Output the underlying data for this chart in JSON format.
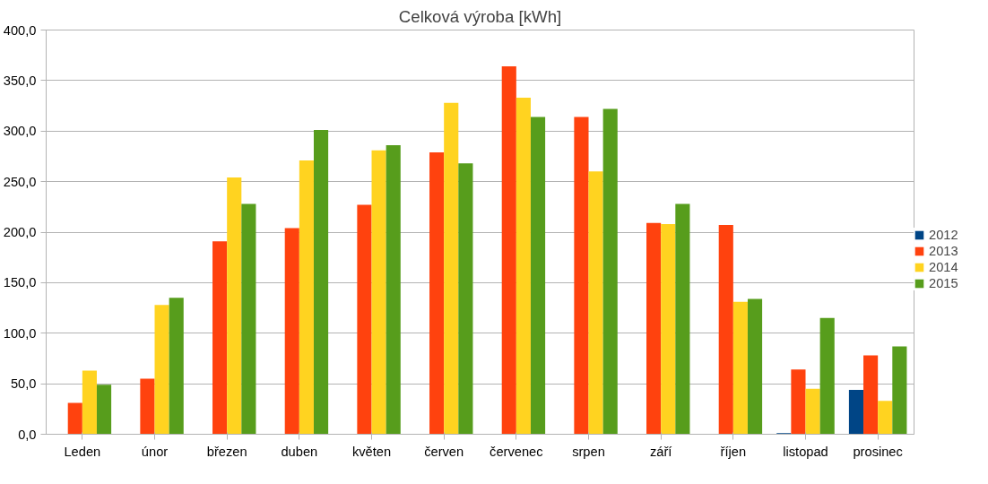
{
  "chart_data": {
    "type": "bar",
    "title": "Celková výroba [kWh]",
    "categories": [
      "Leden",
      "únor",
      "březen",
      "duben",
      "květen",
      "červen",
      "červenec",
      "srpen",
      "září",
      "říjen",
      "listopad",
      "prosinec"
    ],
    "series": [
      {
        "name": "2012",
        "color": "#004586",
        "values": [
          null,
          null,
          null,
          null,
          null,
          null,
          null,
          null,
          null,
          null,
          1,
          44
        ]
      },
      {
        "name": "2013",
        "color": "#ff420e",
        "values": [
          31,
          55,
          191,
          204,
          227,
          279,
          364,
          314,
          209,
          207,
          64,
          78
        ]
      },
      {
        "name": "2014",
        "color": "#ffd320",
        "values": [
          63,
          128,
          254,
          271,
          281,
          328,
          333,
          260,
          208,
          131,
          45,
          33
        ]
      },
      {
        "name": "2015",
        "color": "#579d1c",
        "values": [
          49,
          135,
          228,
          301,
          286,
          268,
          314,
          322,
          228,
          134,
          115,
          87
        ]
      }
    ],
    "ylim": [
      0,
      400
    ],
    "yticks": [
      {
        "value": 0,
        "label": "0,0"
      },
      {
        "value": 50,
        "label": "50,0"
      },
      {
        "value": 100,
        "label": "100,0"
      },
      {
        "value": 150,
        "label": "150,0"
      },
      {
        "value": 200,
        "label": "200,0"
      },
      {
        "value": 250,
        "label": "250,0"
      },
      {
        "value": 300,
        "label": "300,0"
      },
      {
        "value": 350,
        "label": "350,0"
      },
      {
        "value": 400,
        "label": "400,0"
      }
    ],
    "grid": "y",
    "legend": "right"
  }
}
